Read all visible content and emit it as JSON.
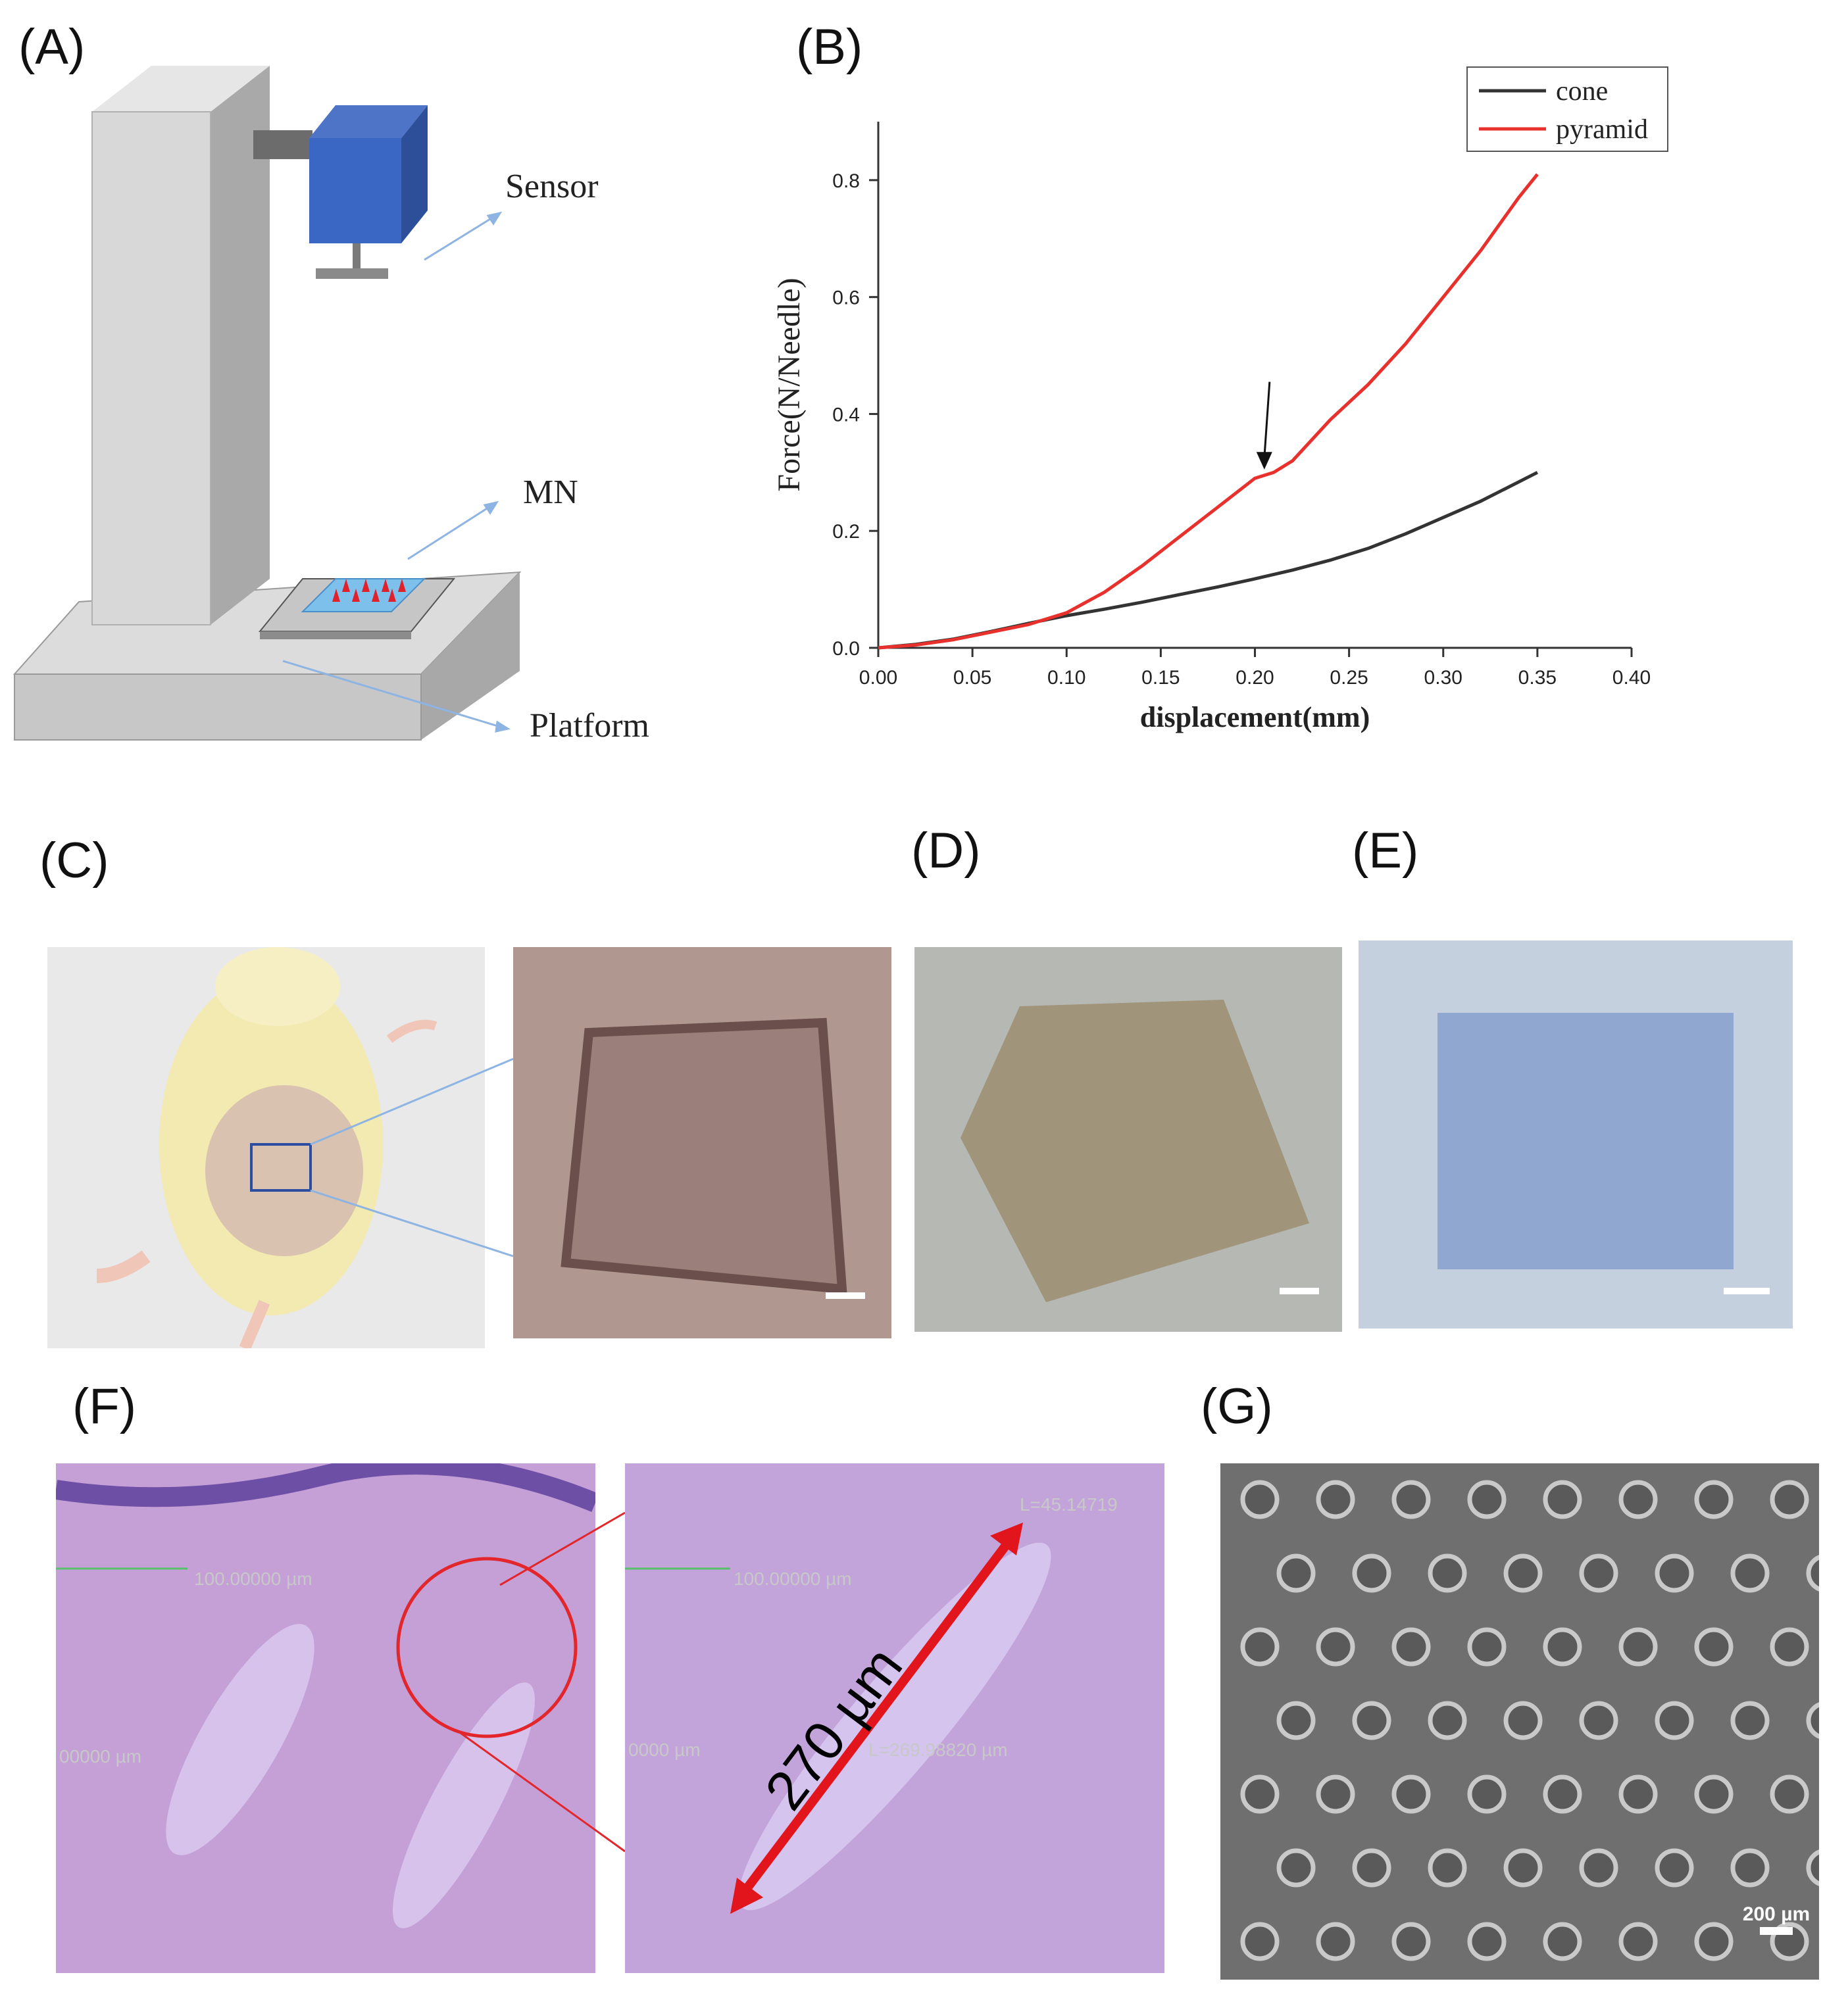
{
  "panels": {
    "a": "(A)",
    "b": "(B)",
    "c": "(C)",
    "d": "(D)",
    "e": "(E)",
    "f": "(F)",
    "g": "(G)"
  },
  "apparatus": {
    "sensor": "Sensor",
    "mn": "MN",
    "platform": "Platform"
  },
  "chart_data": {
    "type": "line",
    "xlabel": "displacement(mm)",
    "ylabel": "Force(N/Needle)",
    "xlim": [
      0,
      0.4
    ],
    "ylim": [
      0,
      0.9
    ],
    "xticks": [
      "0.00",
      "0.05",
      "0.10",
      "0.15",
      "0.20",
      "0.25",
      "0.30",
      "0.35",
      "0.40"
    ],
    "yticks": [
      "0.0",
      "0.2",
      "0.4",
      "0.6",
      "0.8"
    ],
    "legend_position": "top-right",
    "annotation": "arrow at displacement 0.205 mm pointing to pyramid curve",
    "series": [
      {
        "name": "cone",
        "color": "#333333",
        "x": [
          0,
          0.02,
          0.04,
          0.06,
          0.08,
          0.1,
          0.12,
          0.14,
          0.16,
          0.18,
          0.2,
          0.22,
          0.24,
          0.26,
          0.28,
          0.3,
          0.32,
          0.35
        ],
        "y": [
          0,
          0.006,
          0.015,
          0.028,
          0.042,
          0.055,
          0.066,
          0.078,
          0.091,
          0.104,
          0.118,
          0.133,
          0.15,
          0.17,
          0.195,
          0.223,
          0.251,
          0.3
        ]
      },
      {
        "name": "pyramid",
        "color": "#e8302c",
        "x": [
          0,
          0.02,
          0.04,
          0.06,
          0.08,
          0.1,
          0.12,
          0.14,
          0.16,
          0.18,
          0.2,
          0.21,
          0.22,
          0.24,
          0.26,
          0.28,
          0.3,
          0.32,
          0.34,
          0.35
        ],
        "y": [
          0,
          0.005,
          0.014,
          0.027,
          0.04,
          0.06,
          0.095,
          0.14,
          0.19,
          0.24,
          0.29,
          0.3,
          0.32,
          0.39,
          0.45,
          0.52,
          0.6,
          0.68,
          0.77,
          0.81
        ]
      }
    ]
  },
  "micrographs": {
    "f_left_scale1": "100.00000 µm",
    "f_left_scale2": "00000 µm",
    "f_right_scale1": "100.00000 µm",
    "f_right_scale2": "0000 µm",
    "f_right_length": "L=269.98820 µm",
    "f_right_width": "L=45.14719",
    "f_depth_label": "270 µm",
    "g_scale": "200 µm"
  },
  "colors": {
    "sensor_blue": "#3a66c4",
    "column_gray": "#d4d4d4",
    "arrow_blue": "#8db4e2",
    "needle_red": "#e0202a",
    "pad_blue": "#7ec0ec"
  }
}
